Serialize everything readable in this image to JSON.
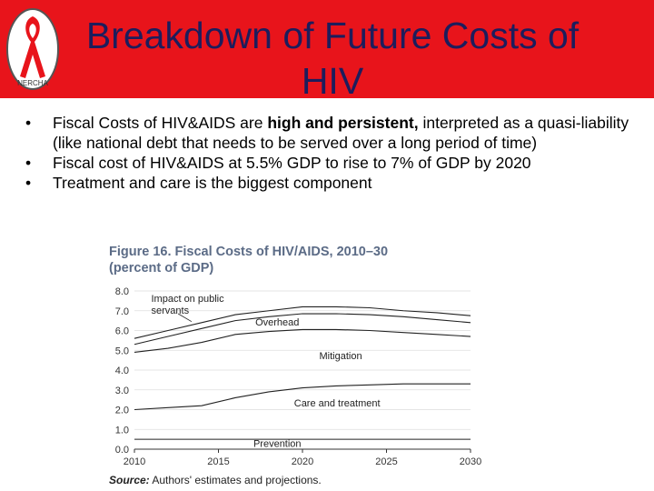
{
  "slide": {
    "title": "Breakdown of Future Costs of HIV",
    "bullets": [
      {
        "before": "Fiscal Costs of HIV&AIDS are ",
        "bold": "high and persistent,",
        "after": " interpreted as a quasi-liability (like national debt that needs to be served over a long period of time)"
      },
      {
        "before": "Fiscal cost of HIV&AIDS at 5.5% GDP to rise to 7% of GDP by 2020",
        "bold": "",
        "after": ""
      },
      {
        "before": "Treatment and care is the biggest component",
        "bold": "",
        "after": ""
      }
    ],
    "bullet_char": "•",
    "logo": {
      "text": "NERCHA",
      "ribbon_color": "#e8141b"
    }
  },
  "figure": {
    "title_line1": "Figure 16. Fiscal Costs of HIV/AIDS, 2010–30",
    "title_line2": "(percent of GDP)",
    "source_label": "Source:",
    "source_text": " Authors' estimates and projections."
  },
  "colors": {
    "title_bar": "#e8141b",
    "title_text": "#1d1d5c",
    "figure_title": "#5b6b86"
  },
  "chart_data": {
    "type": "area",
    "x": [
      2010,
      2012,
      2014,
      2016,
      2018,
      2020,
      2022,
      2024,
      2026,
      2028,
      2030
    ],
    "series": [
      {
        "name": "Prevention",
        "values": [
          0.5,
          0.5,
          0.5,
          0.5,
          0.5,
          0.5,
          0.5,
          0.5,
          0.5,
          0.5,
          0.5
        ]
      },
      {
        "name": "Care and treatment",
        "values": [
          2.0,
          2.1,
          2.2,
          2.6,
          2.9,
          3.1,
          3.2,
          3.25,
          3.3,
          3.3,
          3.3
        ]
      },
      {
        "name": "Mitigation",
        "values": [
          4.9,
          5.1,
          5.4,
          5.8,
          5.95,
          6.05,
          6.05,
          6.0,
          5.9,
          5.8,
          5.7
        ]
      },
      {
        "name": "Overhead",
        "values": [
          5.3,
          5.7,
          6.1,
          6.5,
          6.7,
          6.85,
          6.85,
          6.8,
          6.7,
          6.55,
          6.4
        ]
      },
      {
        "name": "Impact on public servants",
        "values": [
          5.6,
          6.0,
          6.4,
          6.8,
          7.0,
          7.2,
          7.2,
          7.15,
          7.0,
          6.9,
          6.75
        ]
      }
    ],
    "labels": [
      "Impact on public servants",
      "Overhead",
      "Mitigation",
      "Care and treatment",
      "Prevention"
    ],
    "xticks": [
      "2010",
      "2015",
      "2020",
      "2025",
      "2030"
    ],
    "yticks": [
      "0.0",
      "1.0",
      "2.0",
      "3.0",
      "4.0",
      "5.0",
      "6.0",
      "7.0",
      "8.0"
    ],
    "ylim": [
      0,
      8
    ],
    "xlim": [
      2010,
      2030
    ],
    "grid": "horizontal"
  }
}
